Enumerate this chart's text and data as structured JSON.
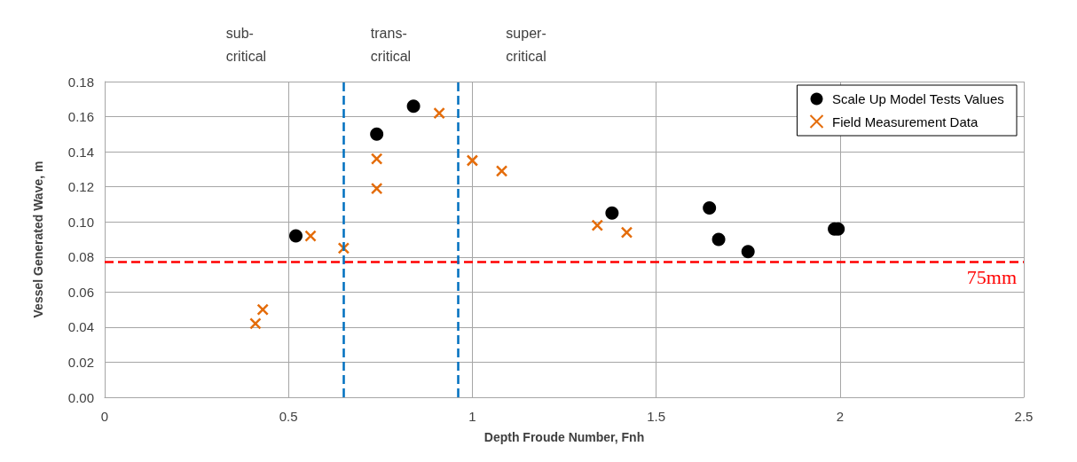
{
  "chart_data": {
    "type": "scatter",
    "xlabel": "Depth Froude Number, Fnh",
    "ylabel": "Vessel Generated Wave, m",
    "xlim": [
      0,
      2.5
    ],
    "xticks": [
      0,
      0.5,
      1,
      1.5,
      2,
      2.5
    ],
    "ylim": [
      0,
      0.18
    ],
    "yticks": [
      {
        "value": 0,
        "label": "0.00"
      },
      {
        "value": 0.02,
        "label": "0.02"
      },
      {
        "value": 0.04,
        "label": "0.04"
      },
      {
        "value": 0.06,
        "label": "0.06"
      },
      {
        "value": 0.08,
        "label": "0.08"
      },
      {
        "value": 0.1,
        "label": "0.10"
      },
      {
        "value": 0.12,
        "label": "0.12"
      },
      {
        "value": 0.14,
        "label": "0.14"
      },
      {
        "value": 0.16,
        "label": "0.16"
      },
      {
        "value": 0.18,
        "label": "0.18"
      }
    ],
    "grid": true,
    "legend": "top right",
    "series": [
      {
        "name": "Scale Up Model Tests Values",
        "color": "#000000",
        "marker": "circle",
        "x": [
          0.52,
          0.74,
          0.84,
          1.38,
          1.645,
          1.67,
          1.75,
          1.985,
          1.995
        ],
        "values": [
          0.092,
          0.15,
          0.166,
          0.105,
          0.108,
          0.09,
          0.083,
          0.096,
          0.096
        ]
      },
      {
        "name": "Field Measurement Data",
        "color": "#e46c0a",
        "marker": "cross",
        "x": [
          0.41,
          0.43,
          0.56,
          0.65,
          0.74,
          0.74,
          0.91,
          1.0,
          1.08,
          1.34,
          1.42
        ],
        "values": [
          0.042,
          0.05,
          0.092,
          0.085,
          0.136,
          0.119,
          0.162,
          0.135,
          0.129,
          0.098,
          0.094
        ]
      }
    ],
    "ref_lines": [
      {
        "axis": "y",
        "value": 0.077,
        "label": "75mm",
        "color": "#ff0000",
        "line_style": "dashed"
      },
      {
        "axis": "x",
        "value": 0.65,
        "color": "#0070c0",
        "line_style": "dashed"
      },
      {
        "axis": "x",
        "value": 0.96,
        "color": "#0070c0",
        "line_style": "dashed"
      }
    ],
    "annotations": [
      "sub-\ncritical",
      "trans-\ncritical",
      "super-\ncritical"
    ]
  }
}
